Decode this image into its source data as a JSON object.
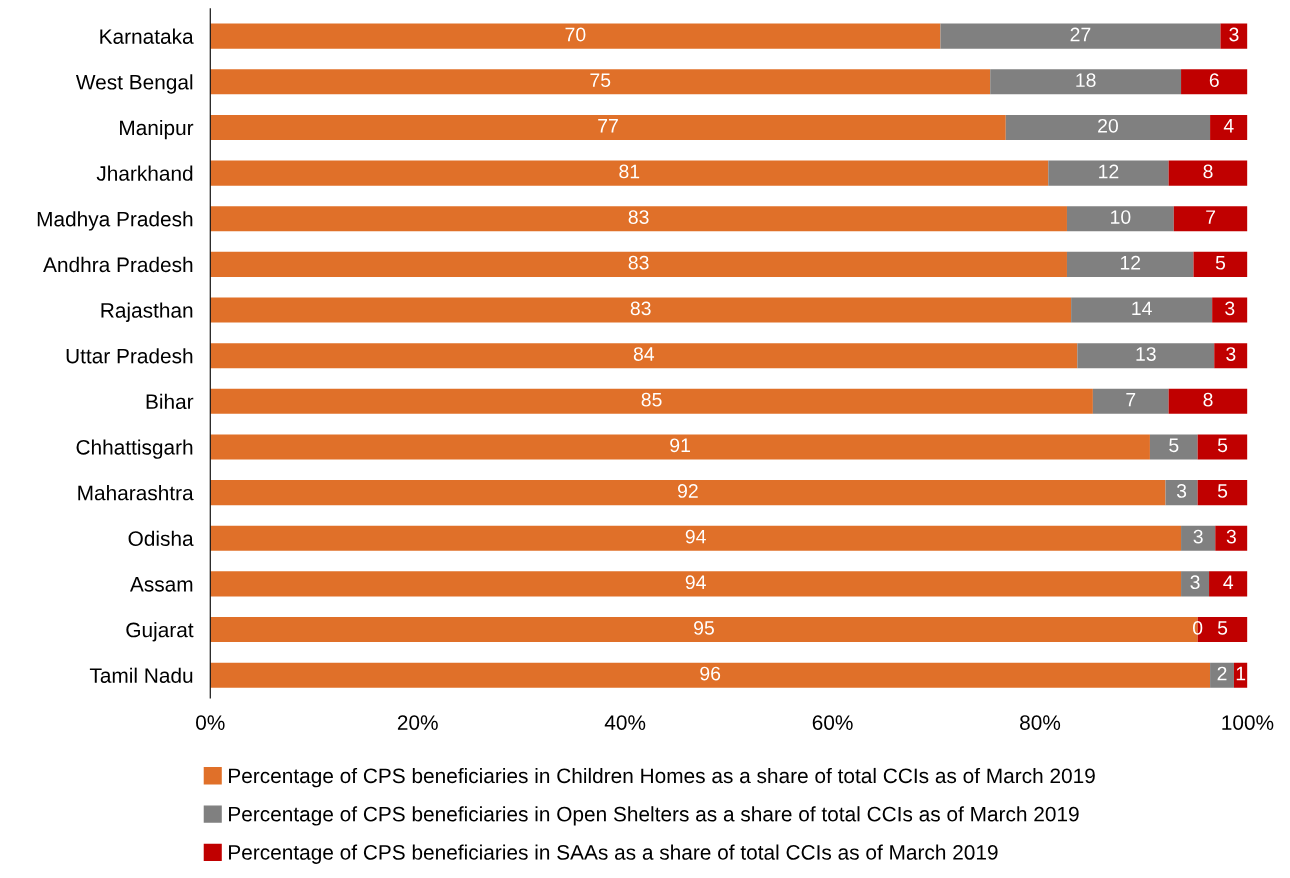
{
  "chart_data": {
    "type": "bar",
    "orientation": "horizontal",
    "stacked": true,
    "categories": [
      "Karnataka",
      "West Bengal",
      "Manipur",
      "Jharkhand",
      "Madhya Pradesh",
      "Andhra Pradesh",
      "Rajasthan",
      "Uttar Pradesh",
      "Bihar",
      "Chhattisgarh",
      "Maharashtra",
      "Odisha",
      "Assam",
      "Gujarat",
      "Tamil Nadu"
    ],
    "series": [
      {
        "name": "Percentage of CPS beneficiaries in Children Homes as a share of total CCIs as of March 2019",
        "color": "#e07029",
        "values": [
          70.4,
          75.2,
          76.7,
          80.8,
          82.6,
          82.6,
          83.0,
          83.6,
          85.1,
          90.6,
          92.1,
          93.6,
          93.6,
          95.2,
          96.4
        ],
        "value_labels": [
          "70",
          "75",
          "77",
          "81",
          "83",
          "83",
          "83",
          "84",
          "85",
          "91",
          "92",
          "94",
          "94",
          "95",
          "96"
        ]
      },
      {
        "name": "Percentage of CPS beneficiaries in Open Shelters as a share of total CCIs as of March 2019",
        "color": "#808080",
        "values": [
          27.0,
          18.4,
          19.7,
          11.6,
          10.3,
          12.2,
          13.6,
          13.2,
          7.3,
          4.6,
          3.1,
          3.3,
          2.7,
          0,
          2.3
        ],
        "value_labels": [
          "27",
          "18",
          "20",
          "12",
          "10",
          "12",
          "14",
          "13",
          "7",
          "5",
          "3",
          "3",
          "3",
          "0",
          "2"
        ]
      },
      {
        "name": "Percentage of CPS beneficiaries in SAAs as a share of total CCIs as of March 2019",
        "color": "#c00000",
        "values": [
          2.6,
          6.4,
          3.6,
          7.6,
          7.1,
          5.2,
          3.4,
          3.2,
          7.6,
          4.8,
          4.8,
          3.1,
          3.7,
          4.8,
          1.3
        ],
        "value_labels": [
          "3",
          "6",
          "4",
          "8",
          "7",
          "5",
          "3",
          "3",
          "8",
          "5",
          "5",
          "3",
          "4",
          "5",
          "1"
        ]
      }
    ],
    "xlim": [
      0,
      100
    ],
    "xticks": [
      {
        "value": 0,
        "label": "0%"
      },
      {
        "value": 20,
        "label": "20%"
      },
      {
        "value": 40,
        "label": "40%"
      },
      {
        "value": 60,
        "label": "60%"
      },
      {
        "value": 80,
        "label": "80%"
      },
      {
        "value": 100,
        "label": "100%"
      }
    ],
    "grid": false,
    "legend": "bottom"
  }
}
